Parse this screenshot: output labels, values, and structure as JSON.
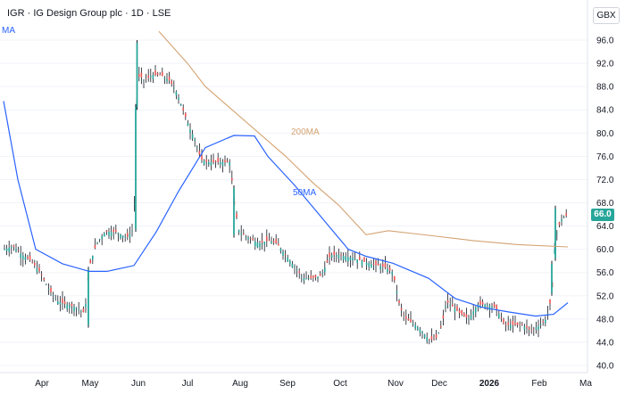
{
  "header": {
    "title": "IGR · IG Design Group plc · 1D · LSE",
    "currency": "GBX",
    "left_ma_label": "MA"
  },
  "last_price_label": "66.0",
  "colors": {
    "up": "#26a69a",
    "down": "#ef5350",
    "candle": "#131722",
    "ma200": "#d4a373",
    "ma50": "#2962ff",
    "last_price": "#26a69a"
  },
  "chart_data": {
    "type": "line",
    "ylim": [
      40,
      97.5
    ],
    "y_ticks": [
      "96.0",
      "92.0",
      "88.0",
      "84.0",
      "80.0",
      "76.0",
      "72.0",
      "68.0",
      "64.0",
      "60.0",
      "56.0",
      "52.0",
      "48.0",
      "44.0",
      "40.0"
    ],
    "months": [
      "Apr",
      "May",
      "Jun",
      "Jul",
      "Aug",
      "Sep",
      "Oct",
      "Nov",
      "Dec",
      "2026",
      "Feb",
      "Ma"
    ],
    "series": [
      {
        "name": "200MA",
        "label": "200MA",
        "points": [
          [
            178,
            97.5
          ],
          [
            210,
            92
          ],
          [
            230,
            88
          ],
          [
            260,
            84
          ],
          [
            290,
            80
          ],
          [
            320,
            76
          ],
          [
            350,
            71.5
          ],
          [
            380,
            67.5
          ],
          [
            410,
            62.5
          ],
          [
            435,
            63.2
          ],
          [
            480,
            62.4
          ],
          [
            530,
            61.5
          ],
          [
            580,
            60.8
          ],
          [
            636,
            60.4
          ]
        ]
      },
      {
        "name": "50MA",
        "label": "50MA",
        "points": [
          [
            4,
            85.5
          ],
          [
            20,
            72
          ],
          [
            40,
            60
          ],
          [
            70,
            57.5
          ],
          [
            100,
            56.2
          ],
          [
            120,
            56.2
          ],
          [
            150,
            57.2
          ],
          [
            175,
            63
          ],
          [
            200,
            70
          ],
          [
            230,
            77.5
          ],
          [
            262,
            79.6
          ],
          [
            285,
            79.5
          ],
          [
            300,
            76
          ],
          [
            330,
            71
          ],
          [
            360,
            65.5
          ],
          [
            390,
            60
          ],
          [
            410,
            58.8
          ],
          [
            440,
            57.6
          ],
          [
            480,
            55
          ],
          [
            510,
            51.5
          ],
          [
            540,
            50
          ],
          [
            570,
            49.2
          ],
          [
            600,
            48.5
          ],
          [
            620,
            48.8
          ],
          [
            636,
            50.8
          ]
        ]
      },
      {
        "name": "Price",
        "points": [
          [
            5,
            60
          ],
          [
            15,
            60.5
          ],
          [
            25,
            59
          ],
          [
            35,
            58
          ],
          [
            45,
            56
          ],
          [
            55,
            53
          ],
          [
            65,
            51
          ],
          [
            75,
            50.5
          ],
          [
            85,
            50
          ],
          [
            95,
            49
          ],
          [
            100,
            57
          ],
          [
            108,
            61
          ],
          [
            118,
            63
          ],
          [
            130,
            63
          ],
          [
            142,
            62
          ],
          [
            150,
            63.5
          ],
          [
            153,
            85
          ],
          [
            156,
            90
          ],
          [
            162,
            89
          ],
          [
            170,
            90
          ],
          [
            180,
            90
          ],
          [
            190,
            89
          ],
          [
            198,
            87
          ],
          [
            205,
            84
          ],
          [
            212,
            81
          ],
          [
            218,
            79
          ],
          [
            225,
            75.5
          ],
          [
            232,
            75
          ],
          [
            240,
            75
          ],
          [
            250,
            75
          ],
          [
            258,
            75
          ],
          [
            262,
            68
          ],
          [
            268,
            63
          ],
          [
            278,
            62
          ],
          [
            290,
            61
          ],
          [
            300,
            61.5
          ],
          [
            310,
            61
          ],
          [
            320,
            59
          ],
          [
            330,
            57
          ],
          [
            340,
            55
          ],
          [
            350,
            55
          ],
          [
            360,
            55.5
          ],
          [
            370,
            59
          ],
          [
            380,
            59
          ],
          [
            395,
            58.5
          ],
          [
            405,
            58
          ],
          [
            415,
            57.5
          ],
          [
            430,
            57
          ],
          [
            440,
            56
          ],
          [
            448,
            50
          ],
          [
            455,
            48
          ],
          [
            465,
            47
          ],
          [
            472,
            46
          ],
          [
            480,
            44.5
          ],
          [
            488,
            44.5
          ],
          [
            495,
            47
          ],
          [
            500,
            51
          ],
          [
            508,
            50
          ],
          [
            515,
            49
          ],
          [
            525,
            48
          ],
          [
            535,
            50.5
          ],
          [
            545,
            50.5
          ],
          [
            555,
            50
          ],
          [
            565,
            47
          ],
          [
            575,
            47
          ],
          [
            585,
            47
          ],
          [
            595,
            46
          ],
          [
            605,
            47
          ],
          [
            612,
            48
          ],
          [
            618,
            52
          ],
          [
            622,
            62
          ],
          [
            628,
            65
          ],
          [
            636,
            66
          ]
        ]
      }
    ]
  }
}
